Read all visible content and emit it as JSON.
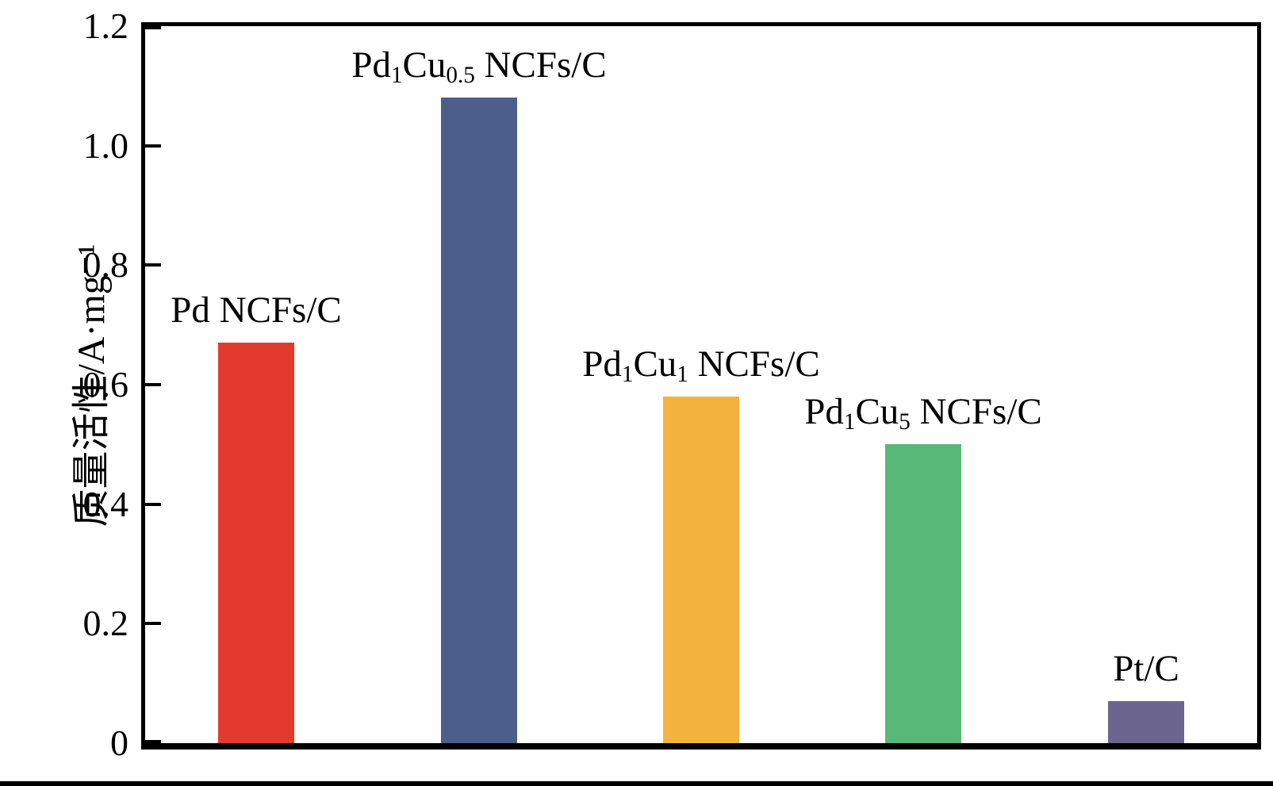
{
  "figure": {
    "background": "#ffffff",
    "axis_color": "#000000"
  },
  "chart_data": {
    "type": "bar",
    "title": "",
    "xlabel": "",
    "ylabel": "质量活性/A·mg⁻¹",
    "categories": [
      "Pd NCFs/C",
      "Pd1Cu0.5 NCFs/C",
      "Pd1Cu1 NCFs/C",
      "Pd1Cu5 NCFs/C",
      "Pt/C"
    ],
    "values": [
      0.67,
      1.08,
      0.58,
      0.5,
      0.07
    ],
    "colors": [
      "#e23a2c",
      "#4c5f8a",
      "#f3b33e",
      "#57b878",
      "#6c6590"
    ],
    "bar_labels": [
      [
        {
          "t": "Pd NCFs/C"
        }
      ],
      [
        {
          "t": "Pd"
        },
        {
          "t": "1",
          "sub": true
        },
        {
          "t": "Cu"
        },
        {
          "t": "0.5",
          "sub": true
        },
        {
          "t": " NCFs/C"
        }
      ],
      [
        {
          "t": "Pd"
        },
        {
          "t": "1",
          "sub": true
        },
        {
          "t": "Cu"
        },
        {
          "t": "1",
          "sub": true
        },
        {
          "t": " NCFs/C"
        }
      ],
      [
        {
          "t": "Pd"
        },
        {
          "t": "1",
          "sub": true
        },
        {
          "t": "Cu"
        },
        {
          "t": "5",
          "sub": true
        },
        {
          "t": " NCFs/C"
        }
      ],
      [
        {
          "t": "Pt/C"
        }
      ]
    ],
    "ylim": [
      0,
      1.2
    ],
    "yticks": [
      "0",
      "0.2",
      "0.4",
      "0.6",
      "0.8",
      "1.0",
      "1.2"
    ],
    "ytick_values": [
      0,
      0.2,
      0.4,
      0.6,
      0.8,
      1.0,
      1.2
    ],
    "grid": false,
    "legend": "none"
  }
}
